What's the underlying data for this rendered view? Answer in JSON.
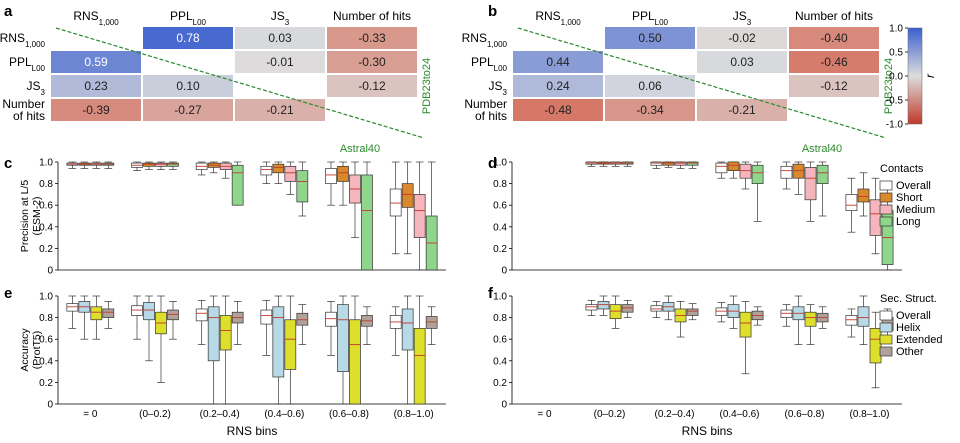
{
  "panel_labels": {
    "a": "a",
    "b": "b",
    "c": "c",
    "d": "d",
    "e": "e",
    "f": "f"
  },
  "colorbar": {
    "label": "r",
    "ticks": [
      "1.0",
      "0.5",
      "0.0",
      "-0.5",
      "-1.0"
    ]
  },
  "colors": {
    "blue_strong": "#5a7fd9",
    "blue_mid": "#88a6e4",
    "blue_light": "#c7d6f2",
    "grey": "#dcdcdc",
    "orange_strong": "#e3785a",
    "orange_mid": "#eea688",
    "orange_light": "#f4cdb8",
    "overall": "#ffffff",
    "short": "#d9892c",
    "medium": "#f5b5bc",
    "long": "#8fd68c",
    "helix": "#b8d9e6",
    "extended": "#dede2c",
    "other": "#b0a29a",
    "diag": "#2a8a2a"
  },
  "chart_data": [
    {
      "type": "heatmap",
      "panel": "a",
      "columns": [
        "RNS1,000",
        "PPLL00",
        "JS3",
        "Number of hits"
      ],
      "rows": [
        "RNS1,000",
        "PPLL00",
        "JS3",
        "Number\nof hits"
      ],
      "upper_label": "PDB23to24",
      "lower_label": "Astral40",
      "cells": [
        {
          "r": 0,
          "c": 1,
          "v": "0.78"
        },
        {
          "r": 0,
          "c": 2,
          "v": "0.03"
        },
        {
          "r": 0,
          "c": 3,
          "v": "-0.33"
        },
        {
          "r": 1,
          "c": 0,
          "v": "0.59"
        },
        {
          "r": 1,
          "c": 2,
          "v": "-0.01"
        },
        {
          "r": 1,
          "c": 3,
          "v": "-0.30"
        },
        {
          "r": 2,
          "c": 0,
          "v": "0.23"
        },
        {
          "r": 2,
          "c": 1,
          "v": "0.10"
        },
        {
          "r": 2,
          "c": 3,
          "v": "-0.12"
        },
        {
          "r": 3,
          "c": 0,
          "v": "-0.39"
        },
        {
          "r": 3,
          "c": 1,
          "v": "-0.27"
        },
        {
          "r": 3,
          "c": 2,
          "v": "-0.21"
        }
      ]
    },
    {
      "type": "heatmap",
      "panel": "b",
      "columns": [
        "RNS1,000",
        "PPLL00",
        "JS3",
        "Number of hits"
      ],
      "rows": [
        "RNS1,000",
        "PPLL00",
        "JS3",
        "Number\nof hits"
      ],
      "upper_label": "PDB23to24",
      "lower_label": "Astral40",
      "cells": [
        {
          "r": 0,
          "c": 1,
          "v": "0.50"
        },
        {
          "r": 0,
          "c": 2,
          "v": "-0.02"
        },
        {
          "r": 0,
          "c": 3,
          "v": "-0.40"
        },
        {
          "r": 1,
          "c": 0,
          "v": "0.44"
        },
        {
          "r": 1,
          "c": 2,
          "v": "0.03"
        },
        {
          "r": 1,
          "c": 3,
          "v": "-0.46"
        },
        {
          "r": 2,
          "c": 0,
          "v": "0.24"
        },
        {
          "r": 2,
          "c": 1,
          "v": "0.06"
        },
        {
          "r": 2,
          "c": 3,
          "v": "-0.12"
        },
        {
          "r": 3,
          "c": 0,
          "v": "-0.48"
        },
        {
          "r": 3,
          "c": 1,
          "v": "-0.34"
        },
        {
          "r": 3,
          "c": 2,
          "v": "-0.21"
        }
      ]
    },
    {
      "type": "box",
      "panel": "c",
      "ylabel": "Precision at L/5\n(ESM-2)",
      "ylim": [
        0,
        1.0
      ],
      "yticks": [
        "0",
        "0.2",
        "0.4",
        "0.6",
        "0.8",
        "1.0"
      ],
      "categories": [
        "= 0",
        "(0–0.2)",
        "(0.2–0.4)",
        "(0.4–0.6)",
        "(0.6–0.8)",
        "(0.8–1.0)"
      ],
      "series": [
        {
          "name": "Overall",
          "boxes": [
            [
              0.94,
              0.97,
              0.98,
              0.99,
              1.0
            ],
            [
              0.92,
              0.95,
              0.97,
              0.99,
              1.0
            ],
            [
              0.88,
              0.93,
              0.96,
              0.99,
              1.0
            ],
            [
              0.8,
              0.88,
              0.93,
              0.96,
              1.0
            ],
            [
              0.6,
              0.8,
              0.88,
              0.94,
              1.0
            ],
            [
              0.15,
              0.5,
              0.62,
              0.75,
              1.0
            ]
          ]
        },
        {
          "name": "Short",
          "boxes": [
            [
              0.94,
              0.97,
              0.98,
              0.99,
              1.0
            ],
            [
              0.93,
              0.96,
              0.98,
              0.99,
              1.0
            ],
            [
              0.9,
              0.95,
              0.97,
              0.99,
              1.0
            ],
            [
              0.8,
              0.9,
              0.95,
              0.98,
              1.0
            ],
            [
              0.6,
              0.82,
              0.9,
              0.96,
              1.0
            ],
            [
              0.15,
              0.58,
              0.7,
              0.8,
              1.0
            ]
          ]
        },
        {
          "name": "Medium",
          "boxes": [
            [
              0.94,
              0.97,
              0.98,
              0.99,
              1.0
            ],
            [
              0.93,
              0.96,
              0.98,
              0.99,
              1.0
            ],
            [
              0.85,
              0.93,
              0.96,
              0.99,
              1.0
            ],
            [
              0.7,
              0.82,
              0.9,
              0.96,
              1.0
            ],
            [
              0.3,
              0.62,
              0.75,
              0.88,
              1.0
            ],
            [
              0.0,
              0.3,
              0.55,
              0.7,
              1.0
            ]
          ]
        },
        {
          "name": "Long",
          "boxes": [
            [
              0.94,
              0.97,
              0.98,
              0.99,
              1.0
            ],
            [
              0.93,
              0.96,
              0.98,
              0.99,
              1.0
            ],
            [
              0.6,
              0.6,
              0.9,
              0.97,
              1.0
            ],
            [
              0.5,
              0.63,
              0.82,
              0.92,
              1.0
            ],
            [
              0.0,
              0.0,
              0.55,
              0.88,
              1.0
            ],
            [
              0.0,
              0.0,
              0.25,
              0.5,
              1.0
            ]
          ]
        }
      ]
    },
    {
      "type": "box",
      "panel": "d",
      "ylim": [
        0,
        1.0
      ],
      "yticks": [
        "0",
        "0.2",
        "0.4",
        "0.6",
        "0.8",
        "1.0"
      ],
      "categories": [
        "= 0",
        "(0–0.2)",
        "(0.2–0.4)",
        "(0.4–0.6)",
        "(0.6–0.8)",
        "(0.8–1.0)"
      ],
      "series": [
        {
          "name": "Overall",
          "boxes": [
            null,
            [
              0.96,
              0.98,
              0.99,
              1.0,
              1.0
            ],
            [
              0.94,
              0.97,
              0.99,
              1.0,
              1.0
            ],
            [
              0.85,
              0.9,
              0.96,
              0.99,
              1.0
            ],
            [
              0.75,
              0.85,
              0.92,
              0.96,
              1.0
            ],
            [
              0.35,
              0.55,
              0.6,
              0.7,
              0.85
            ]
          ]
        },
        {
          "name": "Short",
          "boxes": [
            null,
            [
              0.96,
              0.98,
              0.99,
              1.0,
              1.0
            ],
            [
              0.95,
              0.97,
              0.99,
              1.0,
              1.0
            ],
            [
              0.85,
              0.92,
              0.97,
              1.0,
              1.0
            ],
            [
              0.7,
              0.85,
              0.92,
              0.98,
              1.0
            ],
            [
              0.5,
              0.63,
              0.68,
              0.75,
              0.9
            ]
          ]
        },
        {
          "name": "Medium",
          "boxes": [
            null,
            [
              0.96,
              0.98,
              0.99,
              1.0,
              1.0
            ],
            [
              0.94,
              0.97,
              0.99,
              1.0,
              1.0
            ],
            [
              0.75,
              0.85,
              0.92,
              0.98,
              1.0
            ],
            [
              0.45,
              0.65,
              0.85,
              0.95,
              1.0
            ],
            [
              0.15,
              0.32,
              0.52,
              0.65,
              0.85
            ]
          ]
        },
        {
          "name": "Long",
          "boxes": [
            null,
            [
              0.96,
              0.98,
              0.99,
              1.0,
              1.0
            ],
            [
              0.94,
              0.97,
              0.99,
              1.0,
              1.0
            ],
            [
              0.45,
              0.8,
              0.9,
              0.97,
              1.0
            ],
            [
              0.5,
              0.8,
              0.9,
              0.97,
              1.0
            ],
            [
              0.0,
              0.05,
              0.3,
              0.55,
              0.75
            ]
          ]
        }
      ]
    },
    {
      "type": "box",
      "panel": "e",
      "ylabel": "Accuracy\n(ProtT5)",
      "xlabel": "RNS bins",
      "ylim": [
        0,
        1.0
      ],
      "yticks": [
        "0",
        "0.2",
        "0.4",
        "0.6",
        "0.8",
        "1.0"
      ],
      "categories": [
        "= 0",
        "(0–0.2)",
        "(0.2–0.4)",
        "(0.4–0.6)",
        "(0.6–0.8)",
        "(0.8–1.0)"
      ],
      "series": [
        {
          "name": "Overall",
          "boxes": [
            [
              0.7,
              0.86,
              0.9,
              0.93,
              1.0
            ],
            [
              0.6,
              0.82,
              0.87,
              0.91,
              1.0
            ],
            [
              0.55,
              0.77,
              0.84,
              0.88,
              0.96
            ],
            [
              0.45,
              0.74,
              0.82,
              0.87,
              0.96
            ],
            [
              0.45,
              0.72,
              0.79,
              0.85,
              0.95
            ],
            [
              0.45,
              0.7,
              0.76,
              0.82,
              0.9
            ]
          ]
        },
        {
          "name": "Helix",
          "boxes": [
            [
              0.6,
              0.85,
              0.9,
              0.95,
              1.0
            ],
            [
              0.4,
              0.78,
              0.87,
              0.94,
              1.0
            ],
            [
              0.0,
              0.4,
              0.8,
              0.9,
              1.0
            ],
            [
              0.0,
              0.25,
              0.8,
              0.9,
              1.0
            ],
            [
              0.0,
              0.3,
              0.78,
              0.92,
              1.0
            ],
            [
              0.0,
              0.5,
              0.75,
              0.88,
              1.0
            ]
          ]
        },
        {
          "name": "Extended",
          "boxes": [
            [
              0.6,
              0.78,
              0.85,
              0.9,
              1.0
            ],
            [
              0.2,
              0.65,
              0.75,
              0.85,
              1.0
            ],
            [
              0.0,
              0.5,
              0.68,
              0.82,
              1.0
            ],
            [
              0.0,
              0.32,
              0.6,
              0.78,
              1.0
            ],
            [
              0.0,
              0.0,
              0.55,
              0.78,
              1.0
            ],
            [
              0.0,
              0.0,
              0.45,
              0.7,
              1.0
            ]
          ]
        },
        {
          "name": "Other",
          "boxes": [
            [
              0.7,
              0.8,
              0.85,
              0.88,
              0.95
            ],
            [
              0.6,
              0.78,
              0.83,
              0.87,
              0.95
            ],
            [
              0.55,
              0.75,
              0.8,
              0.85,
              0.95
            ],
            [
              0.55,
              0.73,
              0.78,
              0.84,
              0.92
            ],
            [
              0.55,
              0.72,
              0.77,
              0.82,
              0.9
            ],
            [
              0.55,
              0.7,
              0.76,
              0.81,
              0.9
            ]
          ]
        }
      ]
    },
    {
      "type": "box",
      "panel": "f",
      "xlabel": "RNS bins",
      "ylim": [
        0,
        1.0
      ],
      "yticks": [
        "0",
        "0.2",
        "0.4",
        "0.6",
        "0.8",
        "1.0"
      ],
      "categories": [
        "= 0",
        "(0–0.2)",
        "(0.2–0.4)",
        "(0.4–0.6)",
        "(0.6–0.8)",
        "(0.8–1.0)"
      ],
      "series": [
        {
          "name": "Overall",
          "boxes": [
            null,
            [
              0.82,
              0.87,
              0.9,
              0.92,
              0.96
            ],
            [
              0.8,
              0.86,
              0.88,
              0.91,
              0.95
            ],
            [
              0.76,
              0.82,
              0.86,
              0.89,
              0.94
            ],
            [
              0.72,
              0.8,
              0.84,
              0.87,
              0.92
            ],
            [
              0.62,
              0.73,
              0.78,
              0.82,
              0.88
            ]
          ]
        },
        {
          "name": "Helix",
          "boxes": [
            null,
            [
              0.82,
              0.88,
              0.92,
              0.95,
              1.0
            ],
            [
              0.78,
              0.86,
              0.9,
              0.94,
              1.0
            ],
            [
              0.7,
              0.8,
              0.86,
              0.92,
              1.0
            ],
            [
              0.55,
              0.78,
              0.84,
              0.9,
              1.0
            ],
            [
              0.55,
              0.72,
              0.8,
              0.9,
              1.0
            ]
          ]
        },
        {
          "name": "Extended",
          "boxes": [
            null,
            [
              0.7,
              0.79,
              0.86,
              0.92,
              1.0
            ],
            [
              0.62,
              0.76,
              0.82,
              0.88,
              0.95
            ],
            [
              0.28,
              0.62,
              0.75,
              0.85,
              0.95
            ],
            [
              0.55,
              0.72,
              0.8,
              0.85,
              0.92
            ],
            [
              0.15,
              0.38,
              0.6,
              0.7,
              0.85
            ]
          ]
        },
        {
          "name": "Other",
          "boxes": [
            null,
            [
              0.8,
              0.85,
              0.89,
              0.92,
              0.96
            ],
            [
              0.78,
              0.82,
              0.86,
              0.88,
              0.93
            ],
            [
              0.73,
              0.78,
              0.82,
              0.86,
              0.9
            ],
            [
              0.7,
              0.76,
              0.8,
              0.84,
              0.9
            ],
            [
              0.58,
              0.68,
              0.74,
              0.8,
              0.88
            ]
          ]
        }
      ]
    }
  ],
  "legend_contacts": {
    "title": "Contacts",
    "items": [
      "Overall",
      "Short",
      "Medium",
      "Long"
    ]
  },
  "legend_sec": {
    "title": "Sec. Struct.",
    "items": [
      "Overall",
      "Helix",
      "Extended",
      "Other"
    ]
  }
}
